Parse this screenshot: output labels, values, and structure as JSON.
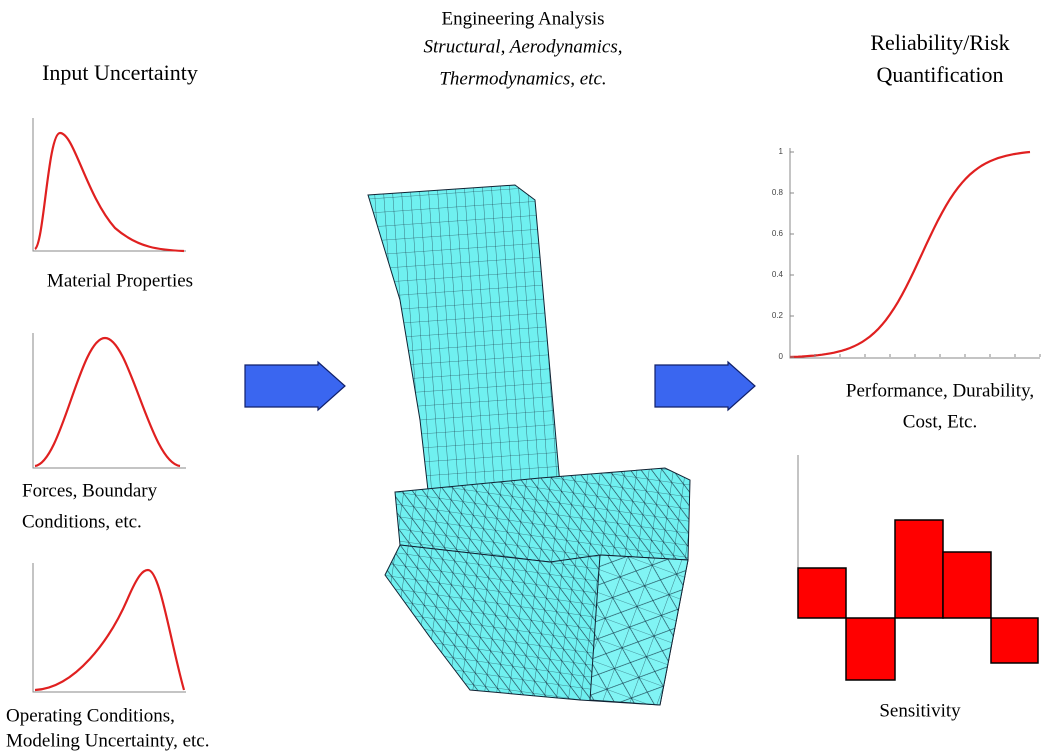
{
  "input_uncertainty": {
    "title": "Input Uncertainty",
    "distributions": [
      {
        "label_lines": [
          "Material Properties"
        ]
      },
      {
        "label_lines": [
          "Forces, Boundary",
          "Conditions, etc."
        ]
      },
      {
        "label_lines": [
          "Operating Conditions,",
          "Modeling Uncertainty, etc."
        ]
      }
    ]
  },
  "engineering_analysis": {
    "title": "Engineering Analysis",
    "subtitle_lines": [
      "Structural, Aerodynamics,",
      "Thermodynamics, etc."
    ]
  },
  "reliability": {
    "title_lines": [
      "Reliability/Risk",
      "Quantification"
    ],
    "cdf": {
      "yticks": [
        0,
        0.2,
        0.4,
        0.6,
        0.8,
        1
      ],
      "label_lines": [
        "Performance, Durability,",
        "Cost, Etc."
      ]
    },
    "sensitivity": {
      "label": "Sensitivity"
    }
  }
}
